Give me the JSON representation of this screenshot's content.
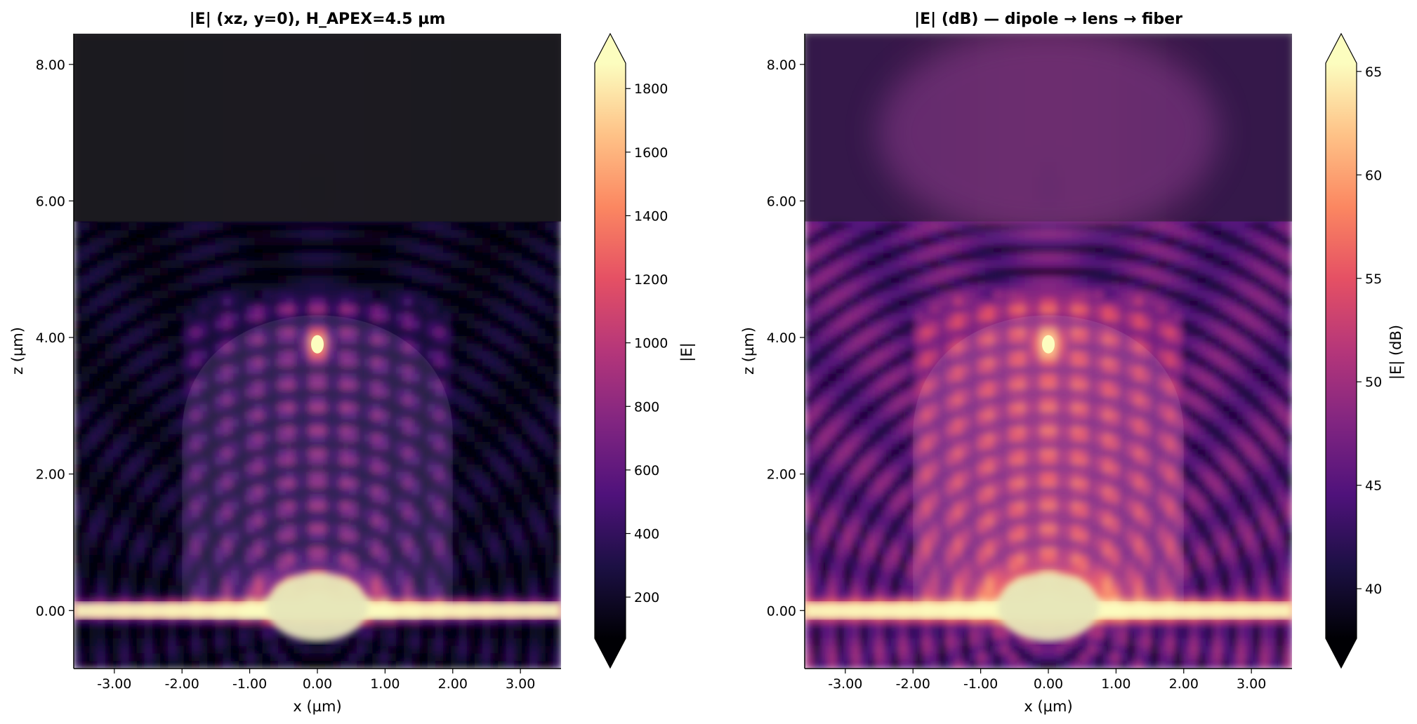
{
  "chart_data": [
    {
      "type": "heatmap",
      "title": "|E| (xz, y=0), H_APEX=4.5 µm",
      "xlabel": "x (µm)",
      "ylabel": "z (µm)",
      "xlim": [
        -3.6,
        3.6
      ],
      "ylim": [
        -0.85,
        8.45
      ],
      "xticks": [
        -3,
        -2,
        -1,
        0,
        1,
        2,
        3
      ],
      "xtick_labels": [
        "-3.00",
        "-2.00",
        "-1.00",
        "0.00",
        "1.00",
        "2.00",
        "3.00"
      ],
      "yticks": [
        0,
        2,
        4,
        6,
        8
      ],
      "ytick_labels": [
        "0.00",
        "2.00",
        "4.00",
        "6.00",
        "8.00"
      ],
      "colorbar": {
        "label": "|E|",
        "colormap": "magma",
        "range": [
          70,
          1880
        ],
        "ticks": [
          200,
          400,
          600,
          800,
          1000,
          1200,
          1400,
          1600,
          1800
        ],
        "tick_labels": [
          "200",
          "400",
          "600",
          "800",
          "1000",
          "1200",
          "1400",
          "1600",
          "1800"
        ],
        "extend": "both"
      },
      "regions": {
        "upper_dark_region_z_start": 5.7,
        "lens": {
          "x_min": -2.0,
          "x_max": 2.0,
          "apex_z": 4.7
        },
        "bright_layer_z": 0.0,
        "peak_hotspot": {
          "x": 0.0,
          "z": 3.9
        }
      },
      "scale": "linear"
    },
    {
      "type": "heatmap",
      "title": "|E| (dB) — dipole → lens → fiber",
      "xlabel": "x (µm)",
      "ylabel": "z (µm)",
      "xlim": [
        -3.6,
        3.6
      ],
      "ylim": [
        -0.85,
        8.45
      ],
      "xticks": [
        -3,
        -2,
        -1,
        0,
        1,
        2,
        3
      ],
      "xtick_labels": [
        "-3.00",
        "-2.00",
        "-1.00",
        "0.00",
        "1.00",
        "2.00",
        "3.00"
      ],
      "yticks": [
        0,
        2,
        4,
        6,
        8
      ],
      "ytick_labels": [
        "0.00",
        "2.00",
        "4.00",
        "6.00",
        "8.00"
      ],
      "colorbar": {
        "label": "|E| (dB)",
        "colormap": "magma",
        "range": [
          37.6,
          65.4
        ],
        "ticks": [
          40,
          45,
          50,
          55,
          60,
          65
        ],
        "tick_labels": [
          "40",
          "45",
          "50",
          "55",
          "60",
          "65"
        ],
        "extend": "both"
      },
      "regions": {
        "upper_dark_region_z_start": 5.7,
        "lens": {
          "x_min": -2.0,
          "x_max": 2.0,
          "apex_z": 4.7
        },
        "bright_layer_z": 0.0,
        "peak_hotspot": {
          "x": 0.0,
          "z": 3.9
        }
      },
      "scale": "dB"
    }
  ]
}
